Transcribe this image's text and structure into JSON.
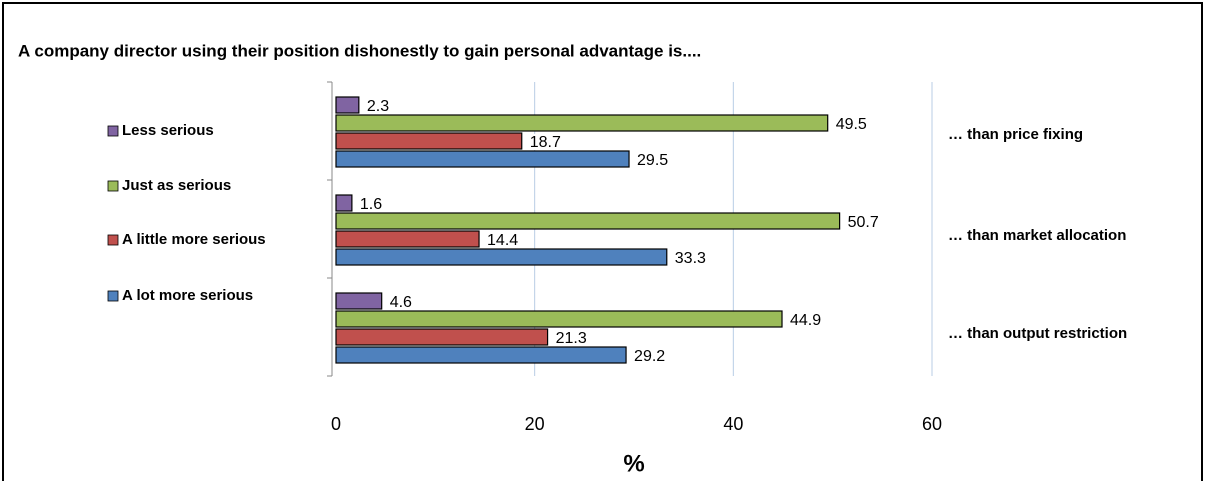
{
  "chart_data": {
    "type": "hbar",
    "title": "A company director using their position dishonestly to gain personal advantage is....",
    "xlabel": "%",
    "categories": [
      "… than price fixing",
      "… than market allocation",
      "… than output restriction"
    ],
    "series": [
      {
        "name": "Less serious",
        "color": "#8064a2",
        "values": [
          2.3,
          1.6,
          4.6
        ]
      },
      {
        "name": "Just as serious",
        "color": "#9bbb59",
        "values": [
          49.5,
          50.7,
          44.9
        ]
      },
      {
        "name": "A little more serious",
        "color": "#c0504d",
        "values": [
          18.7,
          14.4,
          21.3
        ]
      },
      {
        "name": "A lot more serious",
        "color": "#4f81bd",
        "values": [
          29.5,
          33.3,
          29.2
        ]
      }
    ],
    "xlim": [
      0,
      60
    ],
    "xticks": [
      0,
      20,
      40,
      60
    ],
    "grid": true
  }
}
